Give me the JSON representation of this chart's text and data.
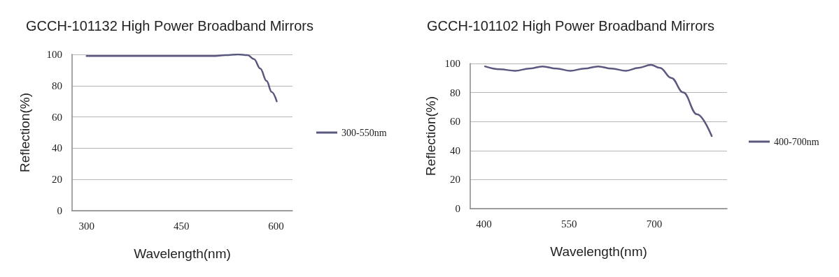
{
  "chart_data": [
    {
      "type": "line",
      "title": "GCCH-101132 High Power Broadband Mirrors",
      "xlabel": "Wavelength(nm)",
      "ylabel": "Reflection(%)",
      "series": [
        {
          "name": "300-550nm",
          "color": "#5b5880",
          "x": [
            300,
            400,
            500,
            520,
            540,
            555,
            565,
            575,
            585,
            593,
            601
          ],
          "values": [
            99,
            99,
            99,
            99.5,
            100,
            99.5,
            97,
            91,
            83,
            76,
            70
          ]
        }
      ],
      "xlim": [
        277,
        626
      ],
      "xticks": [
        300,
        450,
        600
      ],
      "ylim": [
        0,
        100
      ],
      "yticks": [
        0,
        20,
        40,
        60,
        80,
        100
      ],
      "grid": "y",
      "legend": "right",
      "marker": "none",
      "line_style": "solid"
    },
    {
      "type": "line",
      "title": "GCCH-101102 High Power Broadband Mirrors",
      "xlabel": "Wavelength(nm)",
      "ylabel": "Reflection(%)",
      "series": [
        {
          "name": "400-700nm",
          "color": "#5b5880",
          "x": [
            402,
            428,
            455,
            480,
            503,
            528,
            552,
            577,
            601,
            625,
            650,
            672,
            694,
            710,
            730,
            751,
            775,
            801
          ],
          "values": [
            98,
            96,
            95,
            96.5,
            98,
            96.5,
            95,
            96.5,
            98,
            96.5,
            95,
            97,
            99,
            97,
            90,
            80,
            65,
            50
          ]
        }
      ],
      "xlim": [
        376,
        828
      ],
      "xticks": [
        400,
        550,
        700
      ],
      "ylim": [
        0,
        100
      ],
      "yticks": [
        0,
        20,
        40,
        60,
        80,
        100
      ],
      "grid": "y",
      "legend": "right",
      "marker": "none",
      "line_style": "solid"
    }
  ]
}
